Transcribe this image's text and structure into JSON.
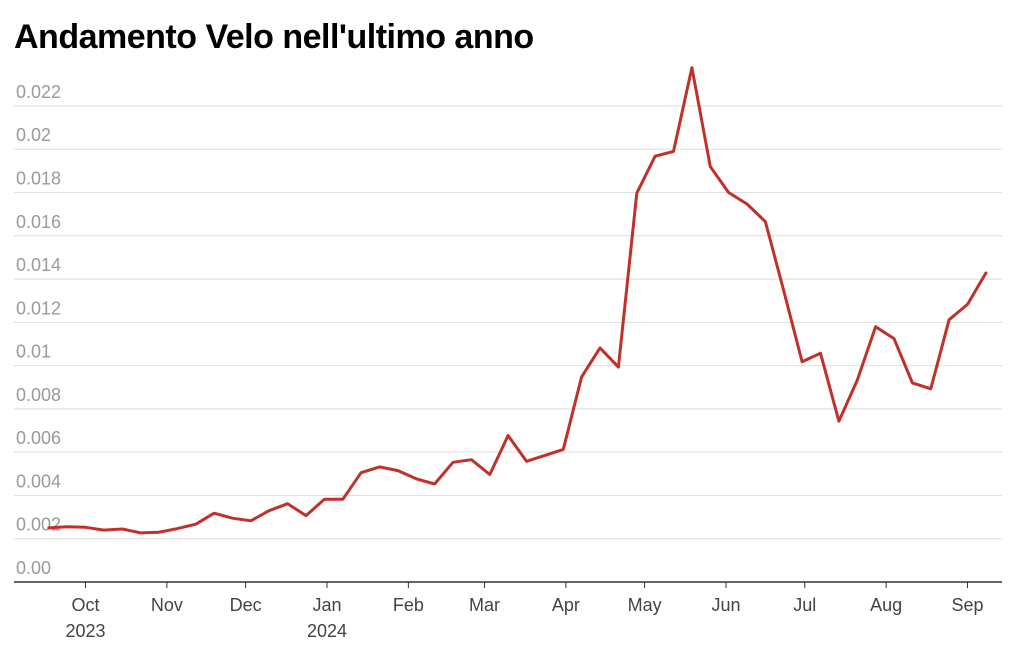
{
  "chart_data": {
    "type": "line",
    "title": "Andamento Velo nell'ultimo anno",
    "xlabel": "",
    "ylabel": "",
    "ylim": [
      0,
      0.0232
    ],
    "grid": true,
    "legend": "none",
    "line_color": "#c0312b",
    "y_ticks": [
      {
        "value": 0,
        "label": "0.00"
      },
      {
        "value": 0.002,
        "label": "0.002"
      },
      {
        "value": 0.004,
        "label": "0.004"
      },
      {
        "value": 0.006,
        "label": "0.006"
      },
      {
        "value": 0.008,
        "label": "0.008"
      },
      {
        "value": 0.01,
        "label": "0.01"
      },
      {
        "value": 0.012,
        "label": "0.012"
      },
      {
        "value": 0.014,
        "label": "0.014"
      },
      {
        "value": 0.016,
        "label": "0.016"
      },
      {
        "value": 0.018,
        "label": "0.018"
      },
      {
        "value": 0.02,
        "label": "0.02"
      },
      {
        "value": 0.022,
        "label": "0.022"
      }
    ],
    "x_ticks": [
      {
        "date": "2023-10-01",
        "label": "Oct",
        "sublabel": "2023"
      },
      {
        "date": "2023-11-01",
        "label": "Nov",
        "sublabel": ""
      },
      {
        "date": "2023-12-01",
        "label": "Dec",
        "sublabel": ""
      },
      {
        "date": "2024-01-01",
        "label": "Jan",
        "sublabel": "2024"
      },
      {
        "date": "2024-02-01",
        "label": "Feb",
        "sublabel": ""
      },
      {
        "date": "2024-03-01",
        "label": "Mar",
        "sublabel": ""
      },
      {
        "date": "2024-04-01",
        "label": "Apr",
        "sublabel": ""
      },
      {
        "date": "2024-05-01",
        "label": "May",
        "sublabel": ""
      },
      {
        "date": "2024-06-01",
        "label": "Jun",
        "sublabel": ""
      },
      {
        "date": "2024-07-01",
        "label": "Jul",
        "sublabel": ""
      },
      {
        "date": "2024-08-01",
        "label": "Aug",
        "sublabel": ""
      },
      {
        "date": "2024-09-01",
        "label": "Sep",
        "sublabel": ""
      }
    ],
    "series": [
      {
        "points": [
          [
            "2023-09-17",
            0.0025
          ],
          [
            "2023-09-24",
            0.00255
          ],
          [
            "2023-10-01",
            0.00253
          ],
          [
            "2023-10-08",
            0.0024
          ],
          [
            "2023-10-15",
            0.00245
          ],
          [
            "2023-10-22",
            0.00227
          ],
          [
            "2023-10-29",
            0.0023
          ],
          [
            "2023-11-05",
            0.00247
          ],
          [
            "2023-11-12",
            0.00267
          ],
          [
            "2023-11-19",
            0.00318
          ],
          [
            "2023-11-26",
            0.00295
          ],
          [
            "2023-12-03",
            0.00283
          ],
          [
            "2023-12-10",
            0.0033
          ],
          [
            "2023-12-17",
            0.00362
          ],
          [
            "2023-12-24",
            0.00307
          ],
          [
            "2023-12-31",
            0.00382
          ],
          [
            "2024-01-07",
            0.00382
          ],
          [
            "2024-01-14",
            0.00505
          ],
          [
            "2024-01-21",
            0.00532
          ],
          [
            "2024-01-28",
            0.00515
          ],
          [
            "2024-02-04",
            0.00477
          ],
          [
            "2024-02-11",
            0.00453
          ],
          [
            "2024-02-18",
            0.00553
          ],
          [
            "2024-02-25",
            0.00565
          ],
          [
            "2024-03-03",
            0.00497
          ],
          [
            "2024-03-10",
            0.00677
          ],
          [
            "2024-03-17",
            0.00558
          ],
          [
            "2024-03-24",
            0.00585
          ],
          [
            "2024-03-31",
            0.00613
          ],
          [
            "2024-04-07",
            0.00948
          ],
          [
            "2024-04-14",
            0.01082
          ],
          [
            "2024-04-21",
            0.00993
          ],
          [
            "2024-04-28",
            0.01797
          ],
          [
            "2024-05-05",
            0.01968
          ],
          [
            "2024-05-12",
            0.0199
          ],
          [
            "2024-05-19",
            0.02377
          ],
          [
            "2024-05-26",
            0.0192
          ],
          [
            "2024-06-02",
            0.018
          ],
          [
            "2024-06-09",
            0.01747
          ],
          [
            "2024-06-16",
            0.01665
          ],
          [
            "2024-06-23",
            0.01345
          ],
          [
            "2024-06-30",
            0.01018
          ],
          [
            "2024-07-07",
            0.01057
          ],
          [
            "2024-07-14",
            0.00743
          ],
          [
            "2024-07-21",
            0.00933
          ],
          [
            "2024-07-28",
            0.0118
          ],
          [
            "2024-08-04",
            0.01125
          ],
          [
            "2024-08-11",
            0.0092
          ],
          [
            "2024-08-18",
            0.00893
          ],
          [
            "2024-08-25",
            0.01212
          ],
          [
            "2024-09-01",
            0.01283
          ],
          [
            "2024-09-08",
            0.01428
          ]
        ]
      }
    ]
  }
}
